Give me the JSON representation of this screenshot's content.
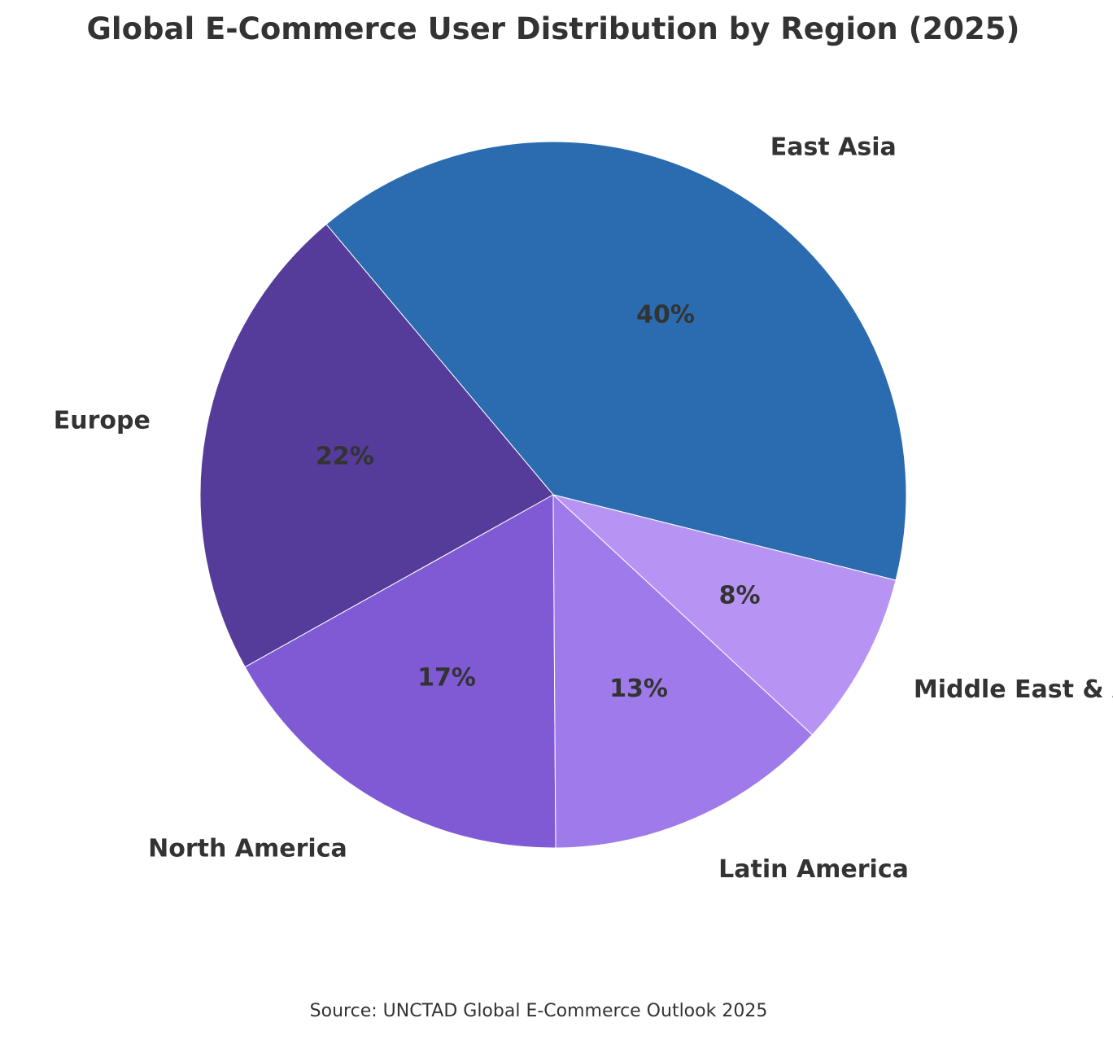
{
  "chart_data": {
    "type": "pie",
    "title": "Global E-Commerce User Distribution by Region (2025)",
    "source": "Source: UNCTAD Global E-Commerce Outlook 2025",
    "start_angle_deg": -14,
    "direction": "counterclockwise",
    "slices": [
      {
        "label": "East Asia",
        "value": 40,
        "pct_label": "40%",
        "color": "#2b6cb0"
      },
      {
        "label": "Europe",
        "value": 22,
        "pct_label": "22%",
        "color": "#553c9a"
      },
      {
        "label": "North America",
        "value": 17,
        "pct_label": "17%",
        "color": "#805ad5"
      },
      {
        "label": "Latin America",
        "value": 13,
        "pct_label": "13%",
        "color": "#9f7aea"
      },
      {
        "label": "Middle East & Africa",
        "value": 8,
        "pct_label": "8%",
        "color": "#b794f4"
      }
    ]
  }
}
